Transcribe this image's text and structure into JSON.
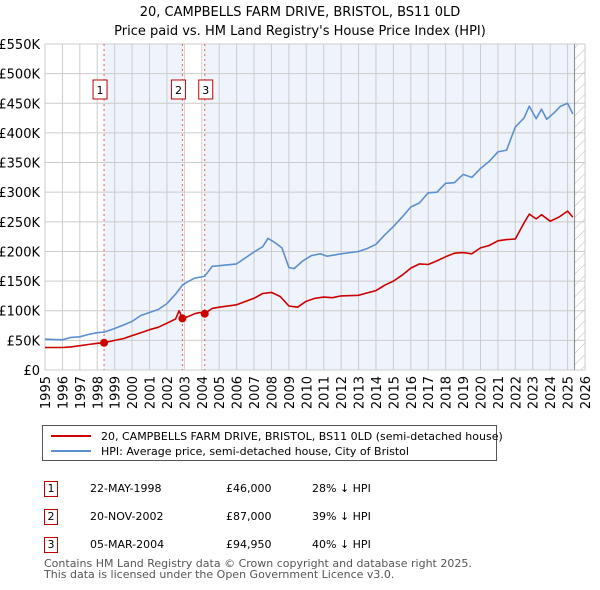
{
  "header": {
    "title": "20, CAMPBELLS FARM DRIVE, BRISTOL, BS11 0LD",
    "subtitle": "Price paid vs. HM Land Registry's House Price Index (HPI)"
  },
  "colors": {
    "property": "#cc0000",
    "hpi": "#5b8fd0",
    "shade": "#eef3fc",
    "marker_border": "#c00000",
    "grid": "#cccccc"
  },
  "chart_data": {
    "type": "line",
    "title": "20, CAMPBELLS FARM DRIVE, BRISTOL, BS11 0LD — Price paid vs. HM Land Registry's House Price Index (HPI)",
    "xlabel": "",
    "ylabel": "",
    "xlim": [
      1995,
      2026
    ],
    "ylim": [
      0,
      550000
    ],
    "grid": true,
    "x_ticks": [
      "1995",
      "1996",
      "1997",
      "1998",
      "1999",
      "2000",
      "2001",
      "2002",
      "2003",
      "2004",
      "2005",
      "2006",
      "2007",
      "2008",
      "2009",
      "2010",
      "2011",
      "2012",
      "2013",
      "2014",
      "2015",
      "2016",
      "2017",
      "2018",
      "2019",
      "2020",
      "2021",
      "2022",
      "2023",
      "2024",
      "2025",
      "2026"
    ],
    "y_ticks": [
      "£0",
      "£50K",
      "£100K",
      "£150K",
      "£200K",
      "£250K",
      "£300K",
      "£350K",
      "£400K",
      "£450K",
      "£500K",
      "£550K"
    ],
    "y_tick_values": [
      0,
      50000,
      100000,
      150000,
      200000,
      250000,
      300000,
      350000,
      400000,
      450000,
      500000,
      550000
    ],
    "legend_position": "below",
    "series": [
      {
        "name": "20, CAMPBELLS FARM DRIVE, BRISTOL, BS11 0LD (semi-detached house)",
        "color": "#cc0000",
        "x": [
          1995.0,
          1996.0,
          1996.5,
          1997.0,
          1997.5,
          1998.0,
          1998.39,
          1999.0,
          1999.5,
          2000.0,
          2000.5,
          2001.0,
          2001.5,
          2002.0,
          2002.5,
          2002.7,
          2002.89,
          2003.2,
          2003.6,
          2003.9,
          2004.17,
          2004.6,
          2005.0,
          2006.0,
          2007.0,
          2007.5,
          2008.0,
          2008.5,
          2009.0,
          2009.5,
          2010.0,
          2010.5,
          2011.0,
          2011.5,
          2012.0,
          2013.0,
          2013.5,
          2014.0,
          2014.5,
          2015.0,
          2015.5,
          2016.0,
          2016.5,
          2017.0,
          2017.5,
          2018.0,
          2018.5,
          2019.0,
          2019.5,
          2020.0,
          2020.5,
          2021.0,
          2021.5,
          2022.0,
          2022.5,
          2022.8,
          2023.2,
          2023.5,
          2024.0,
          2024.5,
          2025.0,
          2025.3
        ],
        "values": [
          38000,
          38000,
          39000,
          41000,
          43000,
          45000,
          46000,
          50000,
          53000,
          58000,
          63000,
          68000,
          72000,
          79000,
          86000,
          100000,
          87000,
          90000,
          95000,
          97000,
          94950,
          104000,
          106000,
          110000,
          121000,
          129000,
          131000,
          124000,
          108000,
          106000,
          116000,
          121000,
          123000,
          122000,
          125000,
          126000,
          130000,
          134000,
          143000,
          150000,
          160000,
          172000,
          179000,
          178000,
          184000,
          191000,
          197000,
          198000,
          196000,
          206000,
          210000,
          218000,
          220000,
          221000,
          248000,
          263000,
          255000,
          262000,
          251000,
          258000,
          268000,
          258000
        ]
      },
      {
        "name": "HPI: Average price, semi-detached house, City of Bristol",
        "color": "#5b8fd0",
        "x": [
          1995.0,
          1996.0,
          1996.5,
          1997.0,
          1997.5,
          1998.0,
          1998.39,
          1999.0,
          1999.5,
          2000.0,
          2000.5,
          2001.0,
          2001.5,
          2002.0,
          2002.5,
          2002.89,
          2003.2,
          2003.6,
          2004.17,
          2004.6,
          2005.0,
          2006.0,
          2007.0,
          2007.5,
          2007.8,
          2008.2,
          2008.6,
          2009.0,
          2009.3,
          2009.8,
          2010.3,
          2010.8,
          2011.2,
          2012.0,
          2013.0,
          2013.5,
          2014.0,
          2014.5,
          2015.0,
          2015.5,
          2016.0,
          2016.5,
          2017.0,
          2017.5,
          2018.0,
          2018.5,
          2019.0,
          2019.5,
          2020.0,
          2020.5,
          2021.0,
          2021.5,
          2022.0,
          2022.5,
          2022.8,
          2023.2,
          2023.5,
          2023.8,
          2024.2,
          2024.6,
          2025.0,
          2025.3
        ],
        "values": [
          52000,
          51000,
          55000,
          56000,
          60000,
          63000,
          64000,
          70000,
          76000,
          82000,
          92000,
          97000,
          102000,
          112000,
          128000,
          143000,
          149000,
          155000,
          158000,
          175000,
          176000,
          179000,
          199000,
          208000,
          222000,
          215000,
          206000,
          173000,
          171000,
          184000,
          193000,
          196000,
          192000,
          196000,
          200000,
          205000,
          212000,
          228000,
          242000,
          258000,
          275000,
          282000,
          299000,
          300000,
          315000,
          316000,
          330000,
          325000,
          340000,
          352000,
          368000,
          371000,
          410000,
          425000,
          445000,
          424000,
          440000,
          423000,
          433000,
          445000,
          450000,
          432000
        ]
      }
    ],
    "sales": [
      {
        "marker": "1",
        "x": 1998.39,
        "value": 46000
      },
      {
        "marker": "2",
        "x": 2002.89,
        "value": 87000
      },
      {
        "marker": "3",
        "x": 2004.17,
        "value": 94950
      }
    ],
    "shaded_ranges": [
      [
        1998.39,
        2002.89
      ],
      [
        2004.17,
        2025.4
      ]
    ],
    "hatched_from": 2025.4
  },
  "legend": {
    "items": [
      {
        "label": "20, CAMPBELLS FARM DRIVE, BRISTOL, BS11 0LD (semi-detached house)"
      },
      {
        "label": "HPI: Average price, semi-detached house, City of Bristol"
      }
    ]
  },
  "transactions": [
    {
      "num": "1",
      "date": "22-MAY-1998",
      "price": "£46,000",
      "hpi": "28% ↓ HPI"
    },
    {
      "num": "2",
      "date": "20-NOV-2002",
      "price": "£87,000",
      "hpi": "39% ↓ HPI"
    },
    {
      "num": "3",
      "date": "05-MAR-2004",
      "price": "£94,950",
      "hpi": "40% ↓ HPI"
    }
  ],
  "footer": {
    "line1": "Contains HM Land Registry data © Crown copyright and database right 2025.",
    "line2": "This data is licensed under the Open Government Licence v3.0."
  }
}
